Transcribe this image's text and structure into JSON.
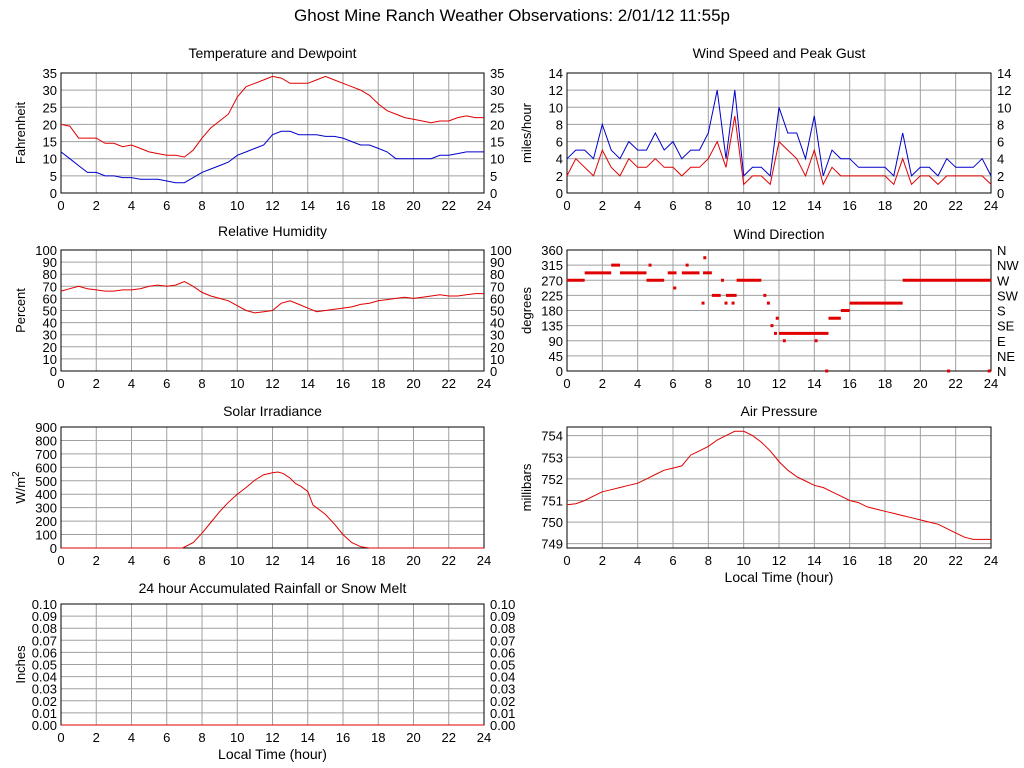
{
  "page": {
    "title": "Ghost Mine Ranch Weather Observations: 2/01/12 11:55p"
  },
  "chart_data": [
    {
      "id": "temp",
      "type": "line",
      "title": "Temperature and Dewpoint",
      "xlabel": "",
      "ylabel": "Fahrenheit",
      "xlim": [
        0,
        24
      ],
      "ylim": [
        0,
        35
      ],
      "xticks": [
        "0",
        "2",
        "4",
        "6",
        "8",
        "10",
        "12",
        "14",
        "16",
        "18",
        "20",
        "22",
        "24"
      ],
      "yticks": [
        "0",
        "5",
        "10",
        "15",
        "20",
        "25",
        "30",
        "35"
      ],
      "right_axis": true,
      "grid": true,
      "series": [
        {
          "color": "#e00000",
          "x": [
            0,
            0.5,
            1,
            1.5,
            2,
            2.5,
            3,
            3.5,
            4,
            4.5,
            5,
            5.5,
            6,
            6.5,
            7,
            7.5,
            8,
            8.5,
            9,
            9.5,
            10,
            10.5,
            11,
            11.5,
            12,
            12.5,
            13,
            13.5,
            14,
            14.5,
            15,
            15.5,
            16,
            16.5,
            17,
            17.5,
            18,
            18.5,
            19,
            19.5,
            20,
            20.5,
            21,
            21.5,
            22,
            22.5,
            23,
            23.5,
            24
          ],
          "y": [
            20,
            19.5,
            16,
            16,
            16,
            14.5,
            14.5,
            13.5,
            14,
            13,
            12,
            11.5,
            11,
            11,
            10.5,
            12.5,
            16,
            19,
            21,
            23,
            28,
            31,
            32,
            33,
            34,
            33.5,
            32,
            32,
            32,
            33,
            34,
            33,
            32,
            31,
            30,
            28.5,
            26,
            24,
            23,
            22,
            21.5,
            21,
            20.5,
            21,
            21,
            22,
            22.5,
            22,
            22
          ]
        },
        {
          "color": "#0000cc",
          "x": [
            0,
            0.5,
            1,
            1.5,
            2,
            2.5,
            3,
            3.5,
            4,
            4.5,
            5,
            5.5,
            6,
            6.5,
            7,
            7.5,
            8,
            8.5,
            9,
            9.5,
            10,
            10.5,
            11,
            11.5,
            12,
            12.5,
            13,
            13.5,
            14,
            14.5,
            15,
            15.5,
            16,
            16.5,
            17,
            17.5,
            18,
            18.5,
            19,
            19.5,
            20,
            20.5,
            21,
            21.5,
            22,
            22.5,
            23,
            23.5,
            24
          ],
          "y": [
            12,
            10,
            8,
            6,
            6,
            5,
            5,
            4.5,
            4.5,
            4,
            4,
            4,
            3.5,
            3,
            3,
            4.5,
            6,
            7,
            8,
            9,
            11,
            12,
            13,
            14,
            17,
            18,
            18,
            17,
            17,
            17,
            16.5,
            16.5,
            16,
            15,
            14,
            14,
            13,
            12,
            10,
            10,
            10,
            10,
            10,
            11,
            11,
            11.5,
            12,
            12,
            12
          ]
        }
      ]
    },
    {
      "id": "wind",
      "type": "line",
      "title": "Wind Speed and Peak Gust",
      "xlabel": "",
      "ylabel": "miles/hour",
      "xlim": [
        0,
        24
      ],
      "ylim": [
        0,
        14
      ],
      "xticks": [
        "0",
        "2",
        "4",
        "6",
        "8",
        "10",
        "12",
        "14",
        "16",
        "18",
        "20",
        "22",
        "24"
      ],
      "yticks": [
        "0",
        "2",
        "4",
        "6",
        "8",
        "10",
        "12",
        "14"
      ],
      "right_axis": true,
      "grid": true,
      "series": [
        {
          "color": "#0000cc",
          "x": [
            0,
            0.5,
            1,
            1.5,
            2,
            2.5,
            3,
            3.5,
            4,
            4.5,
            5,
            5.5,
            6,
            6.5,
            7,
            7.5,
            8,
            8.5,
            9,
            9.5,
            10,
            10.5,
            11,
            11.5,
            12,
            12.5,
            13,
            13.5,
            14,
            14.5,
            15,
            15.5,
            16,
            16.5,
            17,
            17.5,
            18,
            18.5,
            19,
            19.5,
            20,
            20.5,
            21,
            21.5,
            22,
            22.5,
            23,
            23.5,
            24
          ],
          "y": [
            4,
            5,
            5,
            4,
            8,
            5,
            4,
            6,
            5,
            5,
            7,
            5,
            6,
            4,
            5,
            5,
            7,
            12,
            4,
            12,
            2,
            3,
            3,
            2,
            10,
            7,
            7,
            4,
            9,
            2,
            5,
            4,
            4,
            3,
            3,
            3,
            3,
            2,
            7,
            2,
            3,
            3,
            2,
            4,
            3,
            3,
            3,
            4,
            2
          ]
        },
        {
          "color": "#e00000",
          "x": [
            0,
            0.5,
            1,
            1.5,
            2,
            2.5,
            3,
            3.5,
            4,
            4.5,
            5,
            5.5,
            6,
            6.5,
            7,
            7.5,
            8,
            8.5,
            9,
            9.5,
            10,
            10.5,
            11,
            11.5,
            12,
            12.5,
            13,
            13.5,
            14,
            14.5,
            15,
            15.5,
            16,
            16.5,
            17,
            17.5,
            18,
            18.5,
            19,
            19.5,
            20,
            20.5,
            21,
            21.5,
            22,
            22.5,
            23,
            23.5,
            24
          ],
          "y": [
            2,
            4,
            3,
            2,
            5,
            3,
            2,
            4,
            3,
            3,
            4,
            3,
            3,
            2,
            3,
            3,
            4,
            6,
            3,
            9,
            1,
            2,
            2,
            1,
            6,
            5,
            4,
            2,
            5,
            1,
            3,
            2,
            2,
            2,
            2,
            2,
            2,
            1,
            4,
            1,
            2,
            2,
            1,
            2,
            2,
            2,
            2,
            2,
            1
          ]
        }
      ]
    },
    {
      "id": "humidity",
      "type": "line",
      "title": "Relative Humidity",
      "xlabel": "",
      "ylabel": "Percent",
      "xlim": [
        0,
        24
      ],
      "ylim": [
        0,
        100
      ],
      "xticks": [
        "0",
        "2",
        "4",
        "6",
        "8",
        "10",
        "12",
        "14",
        "16",
        "18",
        "20",
        "22",
        "24"
      ],
      "yticks": [
        "0",
        "10",
        "20",
        "30",
        "40",
        "50",
        "60",
        "70",
        "80",
        "90",
        "100"
      ],
      "right_axis": true,
      "grid": true,
      "series": [
        {
          "color": "#e00000",
          "x": [
            0,
            0.5,
            1,
            1.5,
            2,
            2.5,
            3,
            3.5,
            4,
            4.5,
            5,
            5.5,
            6,
            6.5,
            7,
            7.5,
            8,
            8.5,
            9,
            9.5,
            10,
            10.5,
            11,
            11.5,
            12,
            12.5,
            13,
            13.5,
            14,
            14.5,
            15,
            15.5,
            16,
            16.5,
            17,
            17.5,
            18,
            18.5,
            19,
            19.5,
            20,
            20.5,
            21,
            21.5,
            22,
            22.5,
            23,
            23.5,
            24
          ],
          "y": [
            66,
            68,
            70,
            68,
            67,
            66,
            66,
            67,
            67,
            68,
            70,
            71,
            70,
            71,
            74,
            70,
            65,
            62,
            60,
            58,
            54,
            50,
            48,
            49,
            50,
            56,
            58,
            55,
            52,
            49,
            50,
            51,
            52,
            53,
            55,
            56,
            58,
            59,
            60,
            61,
            60,
            61,
            62,
            63,
            62,
            62,
            63,
            64,
            64
          ]
        }
      ]
    },
    {
      "id": "winddir",
      "type": "scatter",
      "title": "Wind Direction",
      "xlabel": "",
      "ylabel": "degrees",
      "xlim": [
        0,
        24
      ],
      "ylim": [
        0,
        360
      ],
      "xticks": [
        "0",
        "2",
        "4",
        "6",
        "8",
        "10",
        "12",
        "14",
        "16",
        "18",
        "20",
        "22",
        "24"
      ],
      "yticks": [
        "0",
        "45",
        "90",
        "135",
        "180",
        "225",
        "270",
        "315",
        "360"
      ],
      "right_ticks": [
        "N",
        "NE",
        "E",
        "SE",
        "S",
        "SW",
        "W",
        "NW",
        "N"
      ],
      "right_axis": true,
      "grid": true,
      "segments": [
        {
          "x0": 0,
          "x1": 1,
          "y": 270
        },
        {
          "x0": 1,
          "x1": 2.5,
          "y": 292
        },
        {
          "x0": 2.5,
          "x1": 3,
          "y": 315
        },
        {
          "x0": 3,
          "x1": 4.5,
          "y": 292
        },
        {
          "x0": 4.5,
          "x1": 5.5,
          "y": 270
        },
        {
          "x0": 5.7,
          "x1": 6.2,
          "y": 292
        },
        {
          "x0": 6.5,
          "x1": 7.5,
          "y": 292
        },
        {
          "x0": 7.7,
          "x1": 8.2,
          "y": 292
        },
        {
          "x0": 8.2,
          "x1": 8.7,
          "y": 225
        },
        {
          "x0": 9,
          "x1": 9.6,
          "y": 225
        },
        {
          "x0": 9.6,
          "x1": 11,
          "y": 270
        },
        {
          "x0": 12,
          "x1": 14.8,
          "y": 112
        },
        {
          "x0": 14.8,
          "x1": 15.5,
          "y": 157
        },
        {
          "x0": 15.5,
          "x1": 16,
          "y": 180
        },
        {
          "x0": 16,
          "x1": 19,
          "y": 202
        },
        {
          "x0": 19,
          "x1": 24,
          "y": 270
        }
      ],
      "points": [
        {
          "x": 4.7,
          "y": 315
        },
        {
          "x": 6.1,
          "y": 247
        },
        {
          "x": 6.8,
          "y": 315
        },
        {
          "x": 7.7,
          "y": 202
        },
        {
          "x": 7.8,
          "y": 337
        },
        {
          "x": 8.8,
          "y": 270
        },
        {
          "x": 9.0,
          "y": 202
        },
        {
          "x": 9.4,
          "y": 202
        },
        {
          "x": 11.2,
          "y": 225
        },
        {
          "x": 11.4,
          "y": 202
        },
        {
          "x": 11.6,
          "y": 135
        },
        {
          "x": 11.9,
          "y": 157
        },
        {
          "x": 11.8,
          "y": 112
        },
        {
          "x": 12.3,
          "y": 90
        },
        {
          "x": 14.1,
          "y": 90
        },
        {
          "x": 14.7,
          "y": 0
        },
        {
          "x": 21.6,
          "y": 0
        },
        {
          "x": 23.9,
          "y": 0
        }
      ]
    },
    {
      "id": "solar",
      "type": "area",
      "title": "Solar Irradiance",
      "xlabel": "",
      "ylabel": "W/m",
      "ylabel_sup": "2",
      "xlim": [
        0,
        24
      ],
      "ylim": [
        0,
        900
      ],
      "xticks": [
        "0",
        "2",
        "4",
        "6",
        "8",
        "10",
        "12",
        "14",
        "16",
        "18",
        "20",
        "22",
        "24"
      ],
      "yticks": [
        "0",
        "100",
        "200",
        "300",
        "400",
        "500",
        "600",
        "700",
        "800",
        "900"
      ],
      "right_axis": false,
      "grid": true,
      "series": [
        {
          "color": "#e00000",
          "x": [
            0,
            6.9,
            7.5,
            8,
            8.5,
            9,
            9.5,
            10,
            10.5,
            11,
            11.5,
            12,
            12.3,
            12.6,
            13,
            13.3,
            13.6,
            14,
            14.3,
            14.6,
            15,
            15.5,
            16,
            16.5,
            17,
            17.5,
            18,
            24
          ],
          "y": [
            0,
            0,
            40,
            110,
            190,
            270,
            340,
            400,
            450,
            505,
            545,
            560,
            565,
            555,
            520,
            480,
            460,
            420,
            320,
            290,
            250,
            180,
            100,
            40,
            10,
            0,
            0,
            0
          ]
        }
      ]
    },
    {
      "id": "pressure",
      "type": "line",
      "title": "Air Pressure",
      "xlabel": "Local Time (hour)",
      "ylabel": "millibars",
      "xlim": [
        0,
        24
      ],
      "ylim": [
        748.8,
        754.4
      ],
      "xticks": [
        "0",
        "2",
        "4",
        "6",
        "8",
        "10",
        "12",
        "14",
        "16",
        "18",
        "20",
        "22",
        "24"
      ],
      "yticks": [
        "749",
        "750",
        "751",
        "752",
        "753",
        "754"
      ],
      "ytick_values": [
        749,
        750,
        751,
        752,
        753,
        754
      ],
      "right_axis": false,
      "grid": true,
      "series": [
        {
          "color": "#e00000",
          "x": [
            0,
            0.5,
            1,
            1.5,
            2,
            2.5,
            3,
            3.5,
            4,
            4.5,
            5,
            5.5,
            6,
            6.5,
            7,
            7.5,
            8,
            8.5,
            9,
            9.5,
            10,
            10.5,
            11,
            11.5,
            12,
            12.5,
            13,
            13.5,
            14,
            14.5,
            15,
            15.5,
            16,
            16.5,
            17,
            17.5,
            18,
            18.5,
            19,
            19.5,
            20,
            20.5,
            21,
            21.5,
            22,
            22.5,
            23,
            23.5,
            24
          ],
          "y": [
            750.8,
            750.85,
            751.0,
            751.2,
            751.4,
            751.5,
            751.6,
            751.7,
            751.8,
            752.0,
            752.2,
            752.4,
            752.5,
            752.6,
            753.1,
            753.3,
            753.5,
            753.8,
            754.0,
            754.2,
            754.2,
            754.0,
            753.7,
            753.3,
            752.8,
            752.4,
            752.1,
            751.9,
            751.7,
            751.6,
            751.4,
            751.2,
            751.0,
            750.9,
            750.7,
            750.6,
            750.5,
            750.4,
            750.3,
            750.2,
            750.1,
            750.0,
            749.9,
            749.7,
            749.5,
            749.3,
            749.2,
            749.2,
            749.2
          ]
        }
      ]
    },
    {
      "id": "rain",
      "type": "line",
      "title": "24 hour Accumulated Rainfall or Snow Melt",
      "xlabel": "Local Time (hour)",
      "ylabel": "Inches",
      "xlim": [
        0,
        24
      ],
      "ylim": [
        0,
        0.1
      ],
      "xticks": [
        "0",
        "2",
        "4",
        "6",
        "8",
        "10",
        "12",
        "14",
        "16",
        "18",
        "20",
        "22",
        "24"
      ],
      "yticks": [
        "0.00",
        "0.01",
        "0.02",
        "0.03",
        "0.04",
        "0.05",
        "0.06",
        "0.07",
        "0.08",
        "0.09",
        "0.10"
      ],
      "right_axis": true,
      "grid": true,
      "series": [
        {
          "color": "#e00000",
          "x": [
            0,
            24
          ],
          "y": [
            0,
            0
          ]
        }
      ]
    }
  ]
}
